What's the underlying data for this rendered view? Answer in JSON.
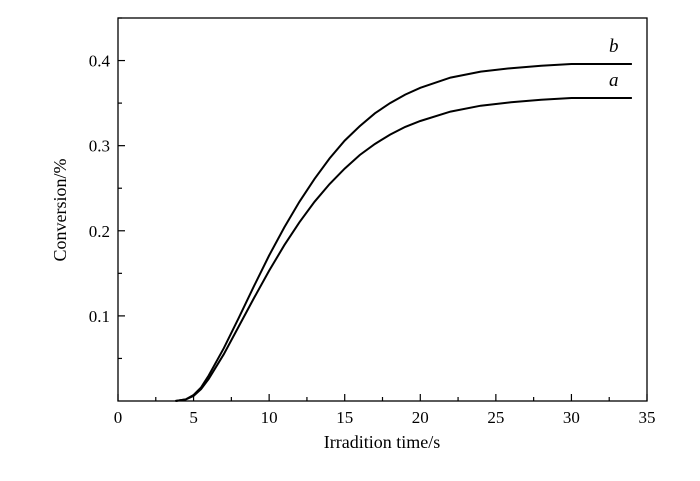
{
  "chart_data": {
    "type": "line",
    "xlabel": "Irradition time/s",
    "ylabel": "Conversion/%",
    "xlim": [
      0,
      35
    ],
    "ylim": [
      0,
      0.45
    ],
    "x_ticks": [
      0,
      5,
      10,
      15,
      20,
      25,
      30,
      35
    ],
    "x_tick_labels": [
      "0",
      "5",
      "10",
      "15",
      "20",
      "25",
      "30",
      "35"
    ],
    "y_ticks": [
      0.1,
      0.2,
      0.3,
      0.4
    ],
    "y_tick_labels": [
      "0.1",
      "0.2",
      "0.3",
      "0.4"
    ],
    "grid": false,
    "series": [
      {
        "name": "a",
        "x": [
          3.8,
          4.5,
          5,
          5.5,
          6,
          7,
          8,
          9,
          10,
          11,
          12,
          13,
          14,
          15,
          16,
          17,
          18,
          19,
          20,
          22,
          24,
          26,
          28,
          30,
          32,
          34
        ],
        "y": [
          0,
          0.002,
          0.006,
          0.014,
          0.026,
          0.055,
          0.088,
          0.121,
          0.153,
          0.183,
          0.21,
          0.234,
          0.255,
          0.273,
          0.289,
          0.302,
          0.313,
          0.322,
          0.329,
          0.34,
          0.347,
          0.351,
          0.354,
          0.356,
          0.356,
          0.356
        ]
      },
      {
        "name": "b",
        "x": [
          3.8,
          4.5,
          5,
          5.5,
          6,
          7,
          8,
          9,
          10,
          11,
          12,
          13,
          14,
          15,
          16,
          17,
          18,
          19,
          20,
          22,
          24,
          26,
          28,
          30,
          32,
          34
        ],
        "y": [
          0,
          0.002,
          0.007,
          0.016,
          0.03,
          0.062,
          0.098,
          0.135,
          0.171,
          0.204,
          0.234,
          0.261,
          0.285,
          0.306,
          0.323,
          0.338,
          0.35,
          0.36,
          0.368,
          0.38,
          0.387,
          0.391,
          0.394,
          0.396,
          0.396,
          0.396
        ]
      }
    ],
    "curve_labels": [
      {
        "text": "b",
        "x": 32.8,
        "y": 0.41
      },
      {
        "text": "a",
        "x": 32.8,
        "y": 0.37
      }
    ]
  }
}
